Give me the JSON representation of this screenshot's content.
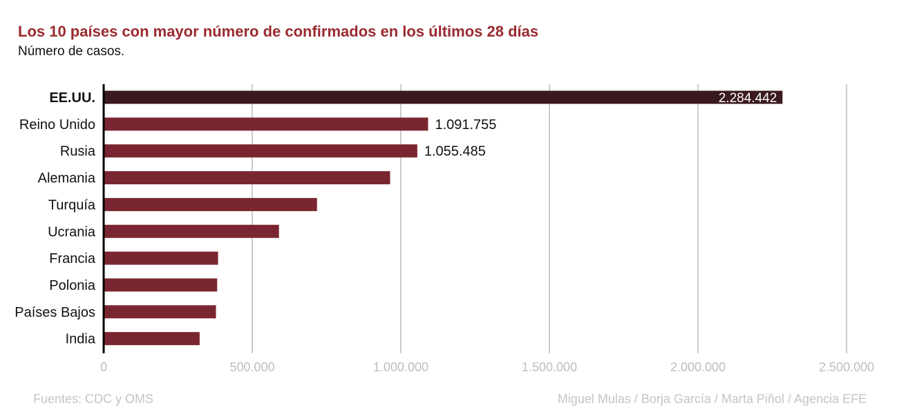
{
  "chart_data": {
    "type": "bar",
    "orientation": "horizontal",
    "title": "Los 10 países con mayor número de confirmados en los últimos 28 días",
    "subtitle": "Número de casos.",
    "categories": [
      "EE.UU.",
      "Reino Unido",
      "Rusia",
      "Alemania",
      "Turquía",
      "Ucrania",
      "Francia",
      "Polonia",
      "Países Bajos",
      "India"
    ],
    "values": [
      2284442,
      1091755,
      1055485,
      964000,
      718000,
      590000,
      385000,
      382000,
      378000,
      323000
    ],
    "data_labels": [
      "2.284.442",
      "1.091.755",
      "1.055.485",
      "",
      "",
      "",
      "",
      "",
      "",
      ""
    ],
    "highlight_category": "EE.UU.",
    "xlim": [
      0,
      2500000
    ],
    "xticks": [
      0,
      500000,
      1000000,
      1500000,
      2000000,
      2500000
    ],
    "xtick_labels": [
      "0",
      "500.000",
      "1.000.000",
      "1.500.000",
      "2.000.000",
      "2.500.000"
    ],
    "grid": "vertical",
    "colors": {
      "bar": "#7a2630",
      "highlight_bar": "#3a1a1e",
      "grid": "#9a9a9a",
      "axis": "#000000",
      "title": "#9a2a30",
      "tick_label": "#bdbdbd"
    }
  },
  "footer": {
    "source": "Fuentes: CDC y OMS",
    "credits": "Miguel Mulas / Borja García / Marta Piñol / Agencia EFE"
  }
}
